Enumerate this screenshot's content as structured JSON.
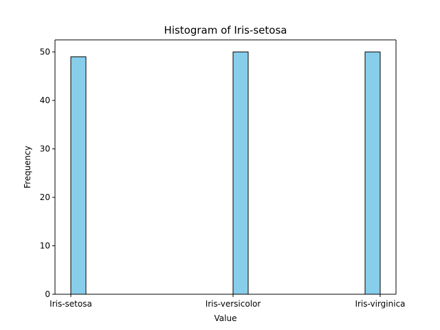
{
  "chart_data": {
    "type": "bar",
    "title": "Histogram of Iris-setosa",
    "xlabel": "Value",
    "ylabel": "Frequency",
    "categories": [
      "Iris-setosa",
      "Iris-versicolor",
      "Iris-virginica"
    ],
    "values": [
      49,
      50,
      50
    ],
    "ylim": [
      0,
      52.5
    ],
    "yticks": [
      0,
      10,
      20,
      30,
      40,
      50
    ],
    "ytick_labels": [
      "0",
      "10",
      "20",
      "30",
      "40",
      "50"
    ],
    "grid": false,
    "legend": "none",
    "bar_color": "#87CEEB",
    "edge_color": "#000000"
  }
}
